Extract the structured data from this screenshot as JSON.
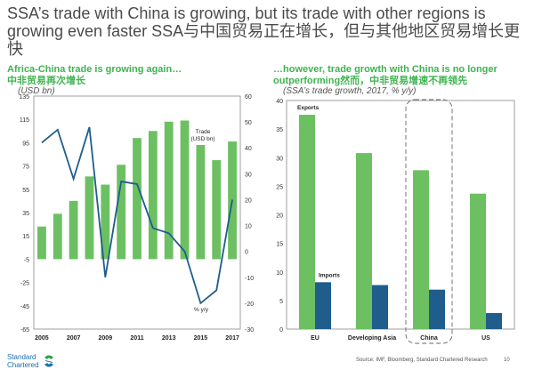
{
  "headline": "SSA’s trade with China is growing, but its trade with other regions is growing even faster SSA与中国贸易正在增长，但与其他地区贸易增长更快",
  "left_panel": {
    "title_en": "Africa-China trade is growing again…",
    "title_cn": "中非贸易再次增长",
    "subtitle": "(USD bn)"
  },
  "right_panel": {
    "title_en": "…however, trade growth with China is no longer",
    "title_en2": "outperforming然而，中非贸易增速不再领先",
    "subtitle": "(SSA’s trade growth, 2017, % y/y)"
  },
  "footer": {
    "logo_line1": "Standard",
    "logo_line2": "Chartered",
    "source": "Source: IMF, Bloomberg, Standard Chartered Research",
    "page": "10"
  },
  "colors": {
    "green": "#6cc062",
    "navy": "#1f5d8c",
    "line": "#1f5d8c",
    "title_green": "#3fb34f"
  },
  "chart_data": [
    {
      "type": "bar+line",
      "categories": [
        "2005",
        "2006",
        "2007",
        "2008",
        "2009",
        "2010",
        "2011",
        "2012",
        "2013",
        "2014",
        "2015",
        "2016",
        "2017"
      ],
      "x_tick_labels": [
        "2005",
        "2007",
        "2009",
        "2011",
        "2013",
        "2015",
        "2017"
      ],
      "series": [
        {
          "name": "Trade (USD bn)",
          "type": "bar",
          "axis": "left",
          "values": [
            23,
            34,
            45,
            66,
            59,
            76,
            99,
            105,
            113,
            114,
            93,
            80,
            96
          ]
        },
        {
          "name": "% y/y",
          "type": "line",
          "axis": "right",
          "values": [
            42,
            47,
            28,
            48,
            -10,
            27,
            26,
            9,
            7,
            0,
            -20,
            -15,
            20
          ]
        }
      ],
      "left_axis": {
        "ylim": [
          -65,
          135
        ],
        "ticks": [
          135,
          115,
          95,
          75,
          55,
          35,
          15,
          -5,
          -25,
          -45,
          -65
        ]
      },
      "right_axis": {
        "ylim": [
          -30,
          60
        ],
        "ticks": [
          60,
          50,
          40,
          30,
          20,
          10,
          0,
          -10,
          -20,
          -30
        ]
      },
      "annotations": [
        {
          "text": "Trade",
          "text2": "(USD bn)"
        },
        {
          "text": "% y/y"
        }
      ]
    },
    {
      "type": "bar",
      "categories": [
        "EU",
        "Developing Asia",
        "China",
        "US"
      ],
      "series": [
        {
          "name": "Exports",
          "values": [
            37.5,
            30.8,
            27.8,
            23.7
          ]
        },
        {
          "name": "Imports",
          "values": [
            8.2,
            7.7,
            6.9,
            2.8
          ]
        }
      ],
      "ylim": [
        0,
        40
      ],
      "ticks": [
        0,
        5,
        10,
        15,
        20,
        25,
        30,
        35,
        40
      ],
      "highlight": "China"
    }
  ]
}
